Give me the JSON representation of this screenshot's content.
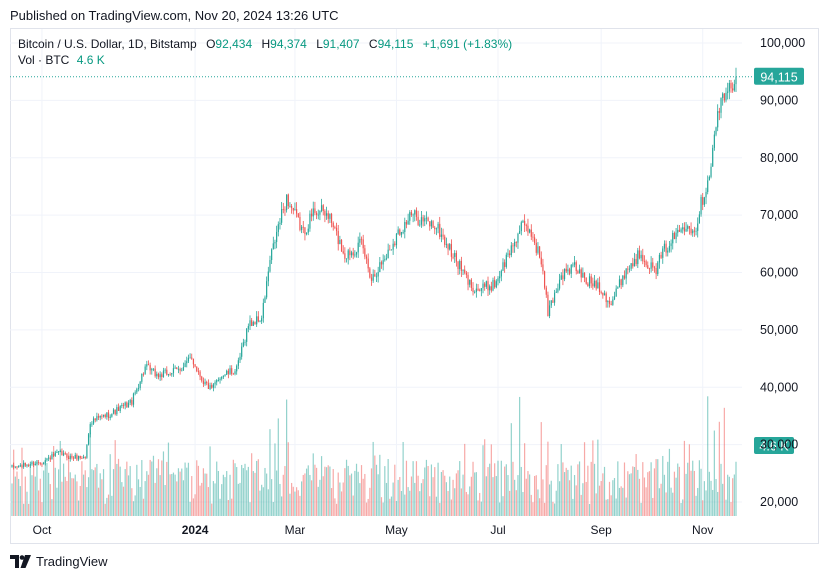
{
  "header": {
    "published": "Published on TradingView.com, Nov 20, 2024 13:26 UTC"
  },
  "legend": {
    "symbol": "Bitcoin / U.S. Dollar, 1D, Bitstamp",
    "o_label": "O",
    "o_value": "92,434",
    "h_label": "H",
    "h_value": "94,374",
    "l_label": "L",
    "l_value": "91,407",
    "c_label": "C",
    "c_value": "94,115",
    "change": "+1,691 (+1.83%)",
    "vol_label": "Vol · BTC",
    "vol_value": "4.6 K"
  },
  "footer": {
    "brand": "TradingView"
  },
  "colors": {
    "up": "#26a69a",
    "down": "#ef5350",
    "up_text": "#089981",
    "grid": "#f0f3fa",
    "axis_text": "#131722"
  },
  "chart_data": {
    "type": "candlestick",
    "title": "Bitcoin / U.S. Dollar, 1D, Bitstamp",
    "last_price_label": "94,115",
    "volume_label": "4.6 K",
    "y_axis": {
      "min": 18000,
      "max": 102000,
      "ticks": [
        20000,
        30000,
        40000,
        50000,
        60000,
        70000,
        80000,
        90000,
        100000
      ],
      "tick_labels": [
        "20,000",
        "30,000",
        "40,000",
        "50,000",
        "60,000",
        "70,000",
        "80,000",
        "90,000",
        "100,000"
      ]
    },
    "x_axis": {
      "labels": [
        {
          "text": "Oct",
          "day": 18,
          "bold": false
        },
        {
          "text": "2024",
          "day": 110,
          "bold": true
        },
        {
          "text": "Mar",
          "day": 170,
          "bold": false
        },
        {
          "text": "May",
          "day": 231,
          "bold": false
        },
        {
          "text": "Jul",
          "day": 292,
          "bold": false
        },
        {
          "text": "Sep",
          "day": 354,
          "bold": false
        },
        {
          "text": "Nov",
          "day": 415,
          "bold": false
        }
      ],
      "total_days": 436
    },
    "anchors": [
      [
        0,
        26000
      ],
      [
        18,
        27000
      ],
      [
        28,
        28500
      ],
      [
        35,
        27800
      ],
      [
        44,
        27800
      ],
      [
        47,
        34000
      ],
      [
        60,
        35500
      ],
      [
        72,
        37500
      ],
      [
        80,
        43500
      ],
      [
        88,
        42000
      ],
      [
        100,
        43000
      ],
      [
        108,
        45000
      ],
      [
        115,
        41000
      ],
      [
        120,
        39500
      ],
      [
        125,
        42000
      ],
      [
        135,
        43000
      ],
      [
        142,
        51000
      ],
      [
        150,
        52000
      ],
      [
        155,
        62000
      ],
      [
        160,
        68000
      ],
      [
        165,
        73000
      ],
      [
        175,
        67000
      ],
      [
        182,
        71000
      ],
      [
        190,
        70000
      ],
      [
        200,
        63000
      ],
      [
        210,
        65000
      ],
      [
        216,
        59000
      ],
      [
        225,
        63000
      ],
      [
        232,
        67000
      ],
      [
        240,
        70000
      ],
      [
        255,
        68000
      ],
      [
        265,
        63000
      ],
      [
        275,
        58000
      ],
      [
        280,
        57000
      ],
      [
        290,
        58000
      ],
      [
        298,
        63000
      ],
      [
        306,
        68000
      ],
      [
        312,
        67000
      ],
      [
        318,
        62000
      ],
      [
        322,
        53000
      ],
      [
        330,
        59500
      ],
      [
        338,
        61000
      ],
      [
        345,
        58500
      ],
      [
        352,
        58000
      ],
      [
        360,
        54500
      ],
      [
        368,
        60000
      ],
      [
        378,
        63500
      ],
      [
        386,
        60000
      ],
      [
        392,
        64000
      ],
      [
        400,
        67000
      ],
      [
        406,
        69000
      ],
      [
        410,
        67000
      ],
      [
        414,
        72000
      ],
      [
        418,
        76000
      ],
      [
        421,
        81000
      ],
      [
        424,
        88000
      ],
      [
        428,
        90500
      ],
      [
        432,
        92500
      ],
      [
        435,
        94115
      ]
    ],
    "volume_spikes": [
      47,
      155,
      160,
      165,
      300,
      305,
      318,
      322,
      418,
      422,
      425,
      428
    ]
  }
}
